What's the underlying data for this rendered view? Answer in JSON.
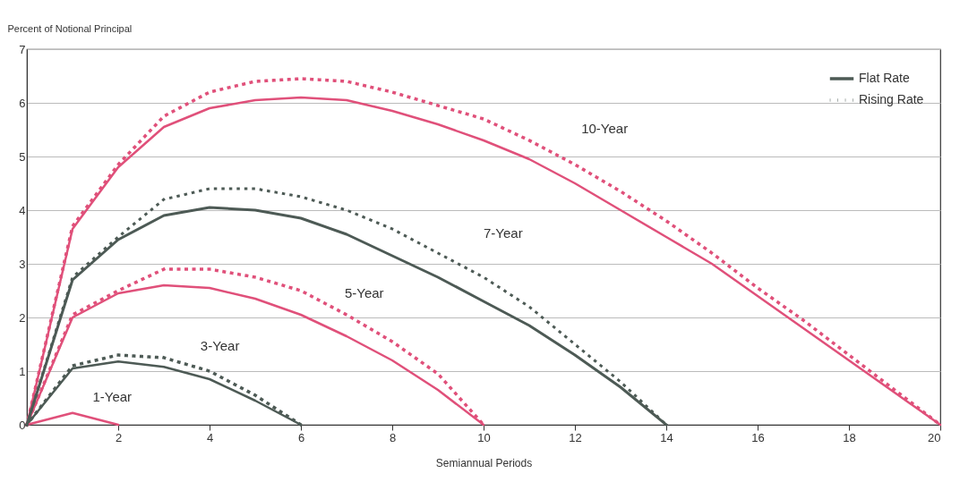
{
  "chart_data": {
    "type": "line",
    "xlabel": "Semiannual Periods",
    "ylabel": "Percent of Notional Principal",
    "xlim": [
      0,
      20
    ],
    "xticks": [
      2,
      4,
      6,
      8,
      10,
      12,
      14,
      16,
      18,
      20
    ],
    "ylim": [
      0,
      7
    ],
    "yticks": [
      {
        "value": 0,
        "label": "0"
      },
      {
        "value": 1,
        "label": "1"
      },
      {
        "value": 2,
        "label": "2"
      },
      {
        "value": 3,
        "label": "3"
      },
      {
        "value": 4,
        "label": "4"
      },
      {
        "value": 5,
        "label": "5"
      },
      {
        "value": 6,
        "label": "6"
      },
      {
        "value": 7,
        "label": "7"
      }
    ],
    "grid": "y",
    "legend": "top right",
    "marker": "none",
    "series": [
      {
        "color": "#e0507a",
        "line_style": "solid",
        "x": [
          0,
          1,
          2,
          3,
          4,
          5,
          6,
          7,
          8,
          9,
          10,
          11,
          12,
          13,
          14,
          15,
          16,
          17,
          18,
          19,
          20
        ],
        "values": [
          0,
          3.65,
          4.8,
          5.55,
          5.9,
          6.05,
          6.1,
          6.05,
          5.85,
          5.6,
          5.3,
          4.95,
          4.5,
          4.0,
          3.5,
          3.0,
          2.4,
          1.8,
          1.2,
          0.6,
          0
        ]
      },
      {
        "color": "#e0507a",
        "line_style": "dotted",
        "x": [
          0,
          1,
          2,
          3,
          4,
          5,
          6,
          7,
          8,
          9,
          10,
          11,
          12,
          13,
          14,
          15,
          16,
          17,
          18,
          19,
          20
        ],
        "values": [
          0,
          3.7,
          4.85,
          5.75,
          6.2,
          6.4,
          6.45,
          6.4,
          6.2,
          5.95,
          5.7,
          5.3,
          4.85,
          4.35,
          3.8,
          3.2,
          2.55,
          1.95,
          1.3,
          0.65,
          0
        ]
      },
      {
        "name": "Flat Rate",
        "color": "#4d5a55",
        "line_style": "solid",
        "x": [
          0,
          1,
          2,
          3,
          4,
          5,
          6,
          7,
          8,
          9,
          10,
          11,
          12,
          13,
          14
        ],
        "values": [
          0,
          2.7,
          3.45,
          3.9,
          4.05,
          4.0,
          3.85,
          3.55,
          3.15,
          2.75,
          2.3,
          1.85,
          1.3,
          0.7,
          0
        ]
      },
      {
        "name": "Rising Rate",
        "color": "#4d5a55",
        "line_style": "dotted",
        "x": [
          0,
          1,
          2,
          3,
          4,
          5,
          6,
          7,
          8,
          9,
          10,
          11,
          12,
          13,
          14
        ],
        "values": [
          0,
          2.75,
          3.5,
          4.2,
          4.4,
          4.4,
          4.25,
          4.0,
          3.65,
          3.2,
          2.75,
          2.2,
          1.5,
          0.8,
          0
        ]
      },
      {
        "color": "#e0507a",
        "line_style": "solid",
        "x": [
          0,
          1,
          2,
          3,
          4,
          5,
          6,
          7,
          8,
          9,
          10
        ],
        "values": [
          0,
          2.0,
          2.45,
          2.6,
          2.55,
          2.35,
          2.05,
          1.65,
          1.2,
          0.65,
          0
        ]
      },
      {
        "color": "#e0507a",
        "line_style": "dotted",
        "x": [
          0,
          1,
          2,
          3,
          4,
          5,
          6,
          7,
          8,
          9,
          10
        ],
        "values": [
          0,
          2.05,
          2.5,
          2.9,
          2.9,
          2.75,
          2.5,
          2.05,
          1.55,
          0.95,
          0
        ]
      },
      {
        "color": "#4d5a55",
        "line_style": "solid",
        "x": [
          0,
          1,
          2,
          3,
          4,
          5,
          6
        ],
        "values": [
          0,
          1.05,
          1.18,
          1.08,
          0.85,
          0.45,
          0
        ]
      },
      {
        "color": "#4d5a55",
        "line_style": "dotted",
        "x": [
          0,
          1,
          2,
          3,
          4,
          5,
          6
        ],
        "values": [
          0,
          1.1,
          1.3,
          1.25,
          1.0,
          0.55,
          0
        ]
      },
      {
        "color": "#e0507a",
        "line_style": "solid",
        "x": [
          0,
          1,
          2
        ],
        "values": [
          0,
          0.22,
          0
        ]
      }
    ],
    "annotations": [
      "10-Year",
      "7-Year",
      "5-Year",
      "3-Year",
      "1-Year"
    ]
  }
}
